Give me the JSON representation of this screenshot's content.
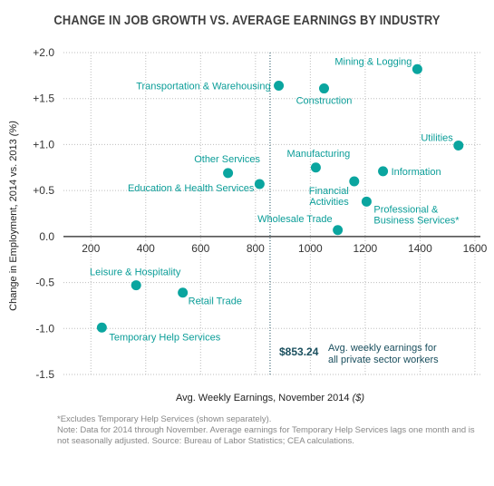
{
  "chart_data": {
    "type": "scatter",
    "title": "CHANGE IN JOB GROWTH VS. AVERAGE EARNINGS BY INDUSTRY",
    "xlabel": "Avg. Weekly Earnings, November 2014",
    "xlabel_unit": "($)",
    "ylabel": "Change in Employment, 2014 vs. 2013",
    "ylabel_unit": "(%)",
    "xlim": [
      100,
      1620
    ],
    "ylim": [
      -1.5,
      2.0
    ],
    "x_ticks": [
      200,
      400,
      600,
      800,
      1000,
      1200,
      1400,
      1600
    ],
    "y_ticks": [
      -1.5,
      -1.0,
      -0.5,
      0.0,
      0.5,
      1.0,
      1.5,
      2.0
    ],
    "y_tick_labels": [
      "-1.5",
      "-1.0",
      "-0.5",
      "0.0",
      "+0.5",
      "+1.0",
      "+1.5",
      "+2.0"
    ],
    "grid": true,
    "point_color": "#0aa59f",
    "points": [
      {
        "label": "Mining & Logging",
        "x": 1390,
        "y": 1.82
      },
      {
        "label": "Transportation & Warehousing",
        "x": 885,
        "y": 1.64
      },
      {
        "label": "Construction",
        "x": 1050,
        "y": 1.61
      },
      {
        "label": "Utilities",
        "x": 1540,
        "y": 0.99
      },
      {
        "label": "Manufacturing",
        "x": 1020,
        "y": 0.75
      },
      {
        "label": "Information",
        "x": 1265,
        "y": 0.71
      },
      {
        "label": "Other Services",
        "x": 700,
        "y": 0.69
      },
      {
        "label": "Financial Activities",
        "x": 1160,
        "y": 0.6
      },
      {
        "label": "Education & Health Services",
        "x": 815,
        "y": 0.57
      },
      {
        "label": "Professional & Business Services*",
        "x": 1205,
        "y": 0.38
      },
      {
        "label": "Wholesale Trade",
        "x": 1100,
        "y": 0.07
      },
      {
        "label": "Leisure & Hospitality",
        "x": 365,
        "y": -0.53
      },
      {
        "label": "Retail Trade",
        "x": 535,
        "y": -0.61
      },
      {
        "label": "Temporary Help Services",
        "x": 240,
        "y": -0.99
      }
    ],
    "reference_line": {
      "x": 853.24,
      "value_label": "$853.24",
      "text": [
        "Avg. weekly earnings for",
        "all private sector workers"
      ]
    }
  },
  "footnotes": [
    "*Excludes Temporary Help Services (shown separately).",
    "Note: Data for 2014 through November. Average earnings for Temporary Help Services lags one month and is not seasonally adjusted. Source: Bureau of Labor Statistics; CEA calculations."
  ]
}
